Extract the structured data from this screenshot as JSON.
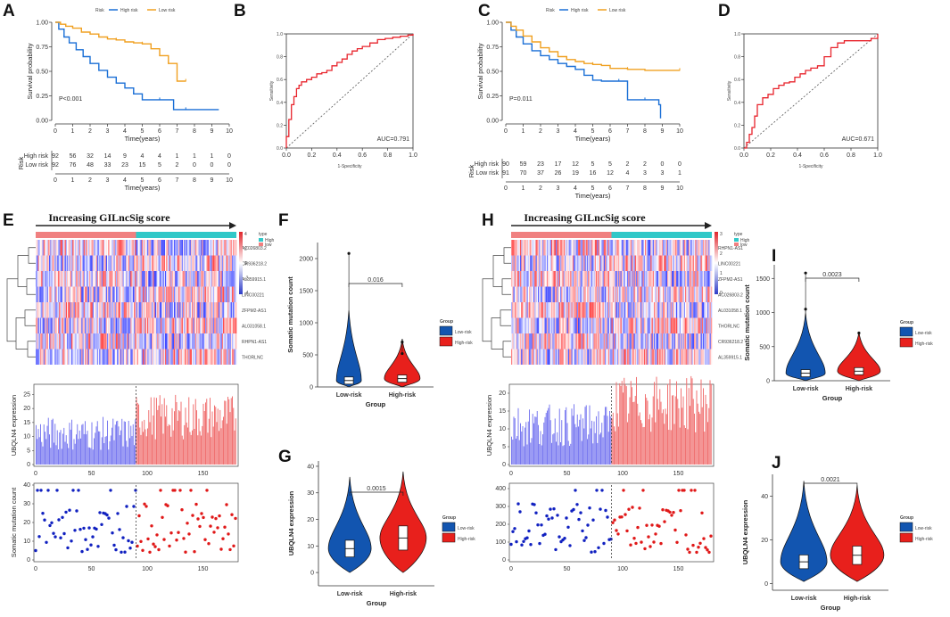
{
  "panel_letters": [
    "A",
    "B",
    "C",
    "D",
    "E",
    "F",
    "G",
    "H",
    "I",
    "J"
  ],
  "colors": {
    "high_risk": "#1a6fd6",
    "low_risk": "#f0a020",
    "roc": "#e8242c",
    "violin_low": "#1255b0",
    "violin_high": "#e8201c",
    "heat_low": "#2d3cc8",
    "heat_high": "#e0262c",
    "bar_low": "#7a7af0",
    "bar_high": "#f07272",
    "dot_low": "#1020c0",
    "dot_high": "#e01818"
  },
  "chart_data": [
    {
      "panel": "A",
      "type": "line",
      "title": "",
      "legend_title": "Risk",
      "legend": [
        "High risk",
        "Low risk"
      ],
      "ylabel": "Survival probability",
      "xlabel": "Time(years)",
      "xlim": [
        0,
        10
      ],
      "ylim": [
        0,
        1
      ],
      "xticks": [
        "0",
        "1",
        "2",
        "3",
        "4",
        "5",
        "6",
        "7",
        "8",
        "9",
        "10"
      ],
      "yticks": [
        "0.00",
        "0.25",
        "0.50",
        "0.75",
        "1.00"
      ],
      "annotation": "P<0.001",
      "series": [
        {
          "name": "High risk",
          "x": [
            0,
            0.2,
            0.5,
            0.8,
            1.2,
            1.6,
            2.0,
            2.5,
            3.0,
            3.5,
            4.0,
            4.5,
            5.0,
            5.5,
            6.0,
            6.6,
            6.8,
            7.5,
            8.5,
            9.4
          ],
          "y": [
            1,
            0.93,
            0.85,
            0.79,
            0.72,
            0.65,
            0.58,
            0.51,
            0.44,
            0.38,
            0.33,
            0.27,
            0.21,
            0.21,
            0.21,
            0.21,
            0.11,
            0.11,
            0.11,
            0.11
          ]
        },
        {
          "name": "Low risk",
          "x": [
            0,
            0.3,
            0.6,
            1.0,
            1.5,
            2.0,
            2.5,
            3.0,
            3.5,
            4.0,
            4.5,
            5.0,
            5.5,
            6.0,
            6.5,
            6.9,
            7.0,
            7.5
          ],
          "y": [
            1,
            0.98,
            0.96,
            0.94,
            0.9,
            0.88,
            0.85,
            0.83,
            0.82,
            0.8,
            0.79,
            0.78,
            0.73,
            0.66,
            0.58,
            0.58,
            0.4,
            0.4
          ]
        }
      ],
      "risk_table": {
        "label": "Risk",
        "xlabel": "Time(years)",
        "rows": [
          {
            "name": "High risk",
            "values": [
              "92",
              "56",
              "32",
              "14",
              "9",
              "4",
              "4",
              "1",
              "1",
              "1",
              "0"
            ]
          },
          {
            "name": "Low risk",
            "values": [
              "92",
              "76",
              "48",
              "33",
              "23",
              "15",
              "5",
              "2",
              "0",
              "0",
              "0"
            ]
          }
        ]
      }
    },
    {
      "panel": "B",
      "type": "line",
      "xlabel": "1-Specificity",
      "ylabel": "Sensitivity",
      "xlim": [
        0,
        1
      ],
      "ylim": [
        0,
        1
      ],
      "xticks": [
        "0.0",
        "0.2",
        "0.4",
        "0.6",
        "0.8",
        "1.0"
      ],
      "yticks": [
        "0.0",
        "0.2",
        "0.4",
        "0.6",
        "0.8",
        "1.0"
      ],
      "annotation": "AUC=0.791",
      "x": [
        0,
        0,
        0.02,
        0.04,
        0.06,
        0.08,
        0.1,
        0.12,
        0.16,
        0.2,
        0.24,
        0.28,
        0.32,
        0.36,
        0.4,
        0.44,
        0.48,
        0.52,
        0.56,
        0.6,
        0.66,
        0.72,
        0.78,
        0.84,
        0.9,
        0.96,
        1.0
      ],
      "y": [
        0,
        0.1,
        0.25,
        0.38,
        0.45,
        0.52,
        0.55,
        0.58,
        0.6,
        0.62,
        0.65,
        0.66,
        0.68,
        0.72,
        0.75,
        0.78,
        0.82,
        0.85,
        0.87,
        0.89,
        0.92,
        0.95,
        0.96,
        0.97,
        0.98,
        0.99,
        1.0
      ]
    },
    {
      "panel": "C",
      "type": "line",
      "legend_title": "Risk",
      "legend": [
        "High risk",
        "Low risk"
      ],
      "ylabel": "Survival probability",
      "xlabel": "Time(years)",
      "xlim": [
        0,
        10
      ],
      "ylim": [
        0,
        1
      ],
      "xticks": [
        "0",
        "1",
        "2",
        "3",
        "4",
        "5",
        "6",
        "7",
        "8",
        "9",
        "10"
      ],
      "yticks": [
        "0.00",
        "0.25",
        "0.50",
        "0.75",
        "1.00"
      ],
      "annotation": "P=0.011",
      "series": [
        {
          "name": "High risk",
          "x": [
            0,
            0.3,
            0.6,
            1.0,
            1.5,
            2.0,
            2.5,
            3.0,
            3.5,
            4.0,
            4.5,
            5.0,
            5.5,
            6.0,
            6.5,
            6.9,
            7.0,
            8.0,
            8.8,
            8.9
          ],
          "y": [
            1,
            0.92,
            0.85,
            0.78,
            0.71,
            0.66,
            0.62,
            0.58,
            0.55,
            0.52,
            0.46,
            0.41,
            0.4,
            0.4,
            0.4,
            0.4,
            0.21,
            0.21,
            0.16,
            0.02
          ]
        },
        {
          "name": "Low risk",
          "x": [
            0,
            0.3,
            0.6,
            1.0,
            1.5,
            2.0,
            2.5,
            3.0,
            3.5,
            4.0,
            4.5,
            5.0,
            5.5,
            6.0,
            7.0,
            8.0,
            9.0,
            10.0
          ],
          "y": [
            1,
            0.96,
            0.92,
            0.86,
            0.8,
            0.74,
            0.7,
            0.65,
            0.62,
            0.6,
            0.58,
            0.57,
            0.56,
            0.53,
            0.52,
            0.51,
            0.51,
            0.51
          ]
        }
      ],
      "risk_table": {
        "label": "Risk",
        "xlabel": "Time(years)",
        "rows": [
          {
            "name": "High risk",
            "values": [
              "90",
              "59",
              "23",
              "17",
              "12",
              "5",
              "5",
              "2",
              "2",
              "0",
              "0"
            ]
          },
          {
            "name": "Low risk",
            "values": [
              "91",
              "70",
              "37",
              "26",
              "19",
              "16",
              "12",
              "4",
              "3",
              "3",
              "1"
            ]
          }
        ]
      }
    },
    {
      "panel": "D",
      "type": "line",
      "xlabel": "1-Specificity",
      "ylabel": "Sensitivity",
      "xlim": [
        0,
        1
      ],
      "ylim": [
        0,
        1
      ],
      "xticks": [
        "0.0",
        "0.2",
        "0.4",
        "0.6",
        "0.8",
        "1.0"
      ],
      "yticks": [
        "0.0",
        "0.2",
        "0.4",
        "0.6",
        "0.8",
        "1.0"
      ],
      "annotation": "AUC=0.671",
      "x": [
        0,
        0.02,
        0.04,
        0.06,
        0.08,
        0.1,
        0.14,
        0.18,
        0.22,
        0.26,
        0.3,
        0.34,
        0.38,
        0.42,
        0.46,
        0.5,
        0.55,
        0.6,
        0.65,
        0.7,
        0.75,
        0.8,
        0.85,
        0.9,
        0.95,
        1.0
      ],
      "y": [
        0,
        0.05,
        0.12,
        0.18,
        0.28,
        0.38,
        0.44,
        0.47,
        0.52,
        0.55,
        0.57,
        0.58,
        0.62,
        0.65,
        0.68,
        0.7,
        0.72,
        0.8,
        0.88,
        0.92,
        0.94,
        0.94,
        0.94,
        0.94,
        0.96,
        1.0
      ]
    },
    {
      "panel": "E",
      "type": "heatmap",
      "title": "Increasing GILncSig  score",
      "rows": [
        "AC026803.2",
        "CR936218.2",
        "AL359915.1",
        "LINC00221",
        "ZFPM2-AS1",
        "AL031058.1",
        "RHPN1-AS1",
        "THORLNC"
      ],
      "legend_title": "type",
      "legend": [
        "High",
        "low"
      ],
      "scale_ticks": [
        "4",
        "2",
        "0",
        "-2",
        "-4"
      ],
      "bar": {
        "ylabel": "UBQLN4 expression",
        "yticks": [
          "0",
          "5",
          "10",
          "15",
          "20",
          "25"
        ],
        "xticks": [
          "0",
          "50",
          "100",
          "150"
        ],
        "ylim": [
          0,
          28
        ]
      },
      "scatter": {
        "ylabel": "Somatic mutation count",
        "yticks": [
          "0",
          "10",
          "20",
          "30",
          "40"
        ],
        "xticks": [
          "0",
          "50",
          "100",
          "150"
        ],
        "ylim": [
          0,
          40
        ]
      }
    },
    {
      "panel": "F",
      "type": "violin",
      "categories": [
        "Low-risk",
        "High-risk"
      ],
      "xlabel": "Group",
      "ylabel": "Somatic mutation count",
      "yticks": [
        "0",
        "500",
        "1000",
        "1500",
        "2000"
      ],
      "ylim": [
        0,
        2250
      ],
      "pvalue": "0.016",
      "legend_title": "Group",
      "legend": [
        "Low-risk",
        "High-risk"
      ],
      "medians": [
        100,
        130
      ],
      "outliers": [
        [
          2080
        ],
        [
          700,
          520
        ]
      ]
    },
    {
      "panel": "G",
      "type": "violin",
      "categories": [
        "Low-risk",
        "High-risk"
      ],
      "xlabel": "Group",
      "ylabel": "UBQLN4 expression",
      "yticks": [
        "0",
        "10",
        "20",
        "30",
        "40"
      ],
      "ylim": [
        -5,
        42
      ],
      "pvalue": "0.0015",
      "legend_title": "Group",
      "legend": [
        "Low-risk",
        "High-risk"
      ],
      "medians": [
        9,
        13
      ]
    },
    {
      "panel": "H",
      "type": "heatmap",
      "title": "Increasing GILncSig  score",
      "rows": [
        "RHPN1-AS1",
        "LINC00221",
        "ZFPM2-AS1",
        "AC026803.2",
        "AL031058.1",
        "THORLNC",
        "CR936218.2",
        "AL359915.1"
      ],
      "legend_title": "type",
      "legend": [
        "High",
        "low"
      ],
      "scale_ticks": [
        "3",
        "2",
        "1",
        "0"
      ],
      "bar": {
        "ylabel": "UBQLN4 expression",
        "yticks": [
          "0",
          "5",
          "10",
          "15",
          "20"
        ],
        "xticks": [
          "0",
          "50",
          "100",
          "150"
        ],
        "ylim": [
          0,
          22
        ]
      },
      "scatter": {
        "ylabel": "",
        "yticks": [
          "0",
          "100",
          "200",
          "300",
          "400"
        ],
        "xticks": [
          "0",
          "50",
          "100",
          "150"
        ],
        "ylim": [
          0,
          420
        ]
      }
    },
    {
      "panel": "I",
      "type": "violin",
      "categories": [
        "Low-risk",
        "High-risk"
      ],
      "xlabel": "Group",
      "ylabel": "Somatic mutation count",
      "yticks": [
        "0",
        "500",
        "1000",
        "1500"
      ],
      "ylim": [
        0,
        1700
      ],
      "pvalue": "0.0023",
      "legend_title": "Group",
      "legend": [
        "Low-risk",
        "High-risk"
      ],
      "medians": [
        110,
        140
      ],
      "outliers": [
        [
          1580,
          1050
        ],
        [
          700
        ]
      ]
    },
    {
      "panel": "J",
      "type": "violin",
      "categories": [
        "Low-risk",
        "High-risk"
      ],
      "xlabel": "Group",
      "ylabel": "UBQLN4 expression",
      "yticks": [
        "0",
        "20",
        "40"
      ],
      "ylim": [
        -3,
        50
      ],
      "pvalue": "0.0021",
      "legend_title": "Group",
      "legend": [
        "Low-risk",
        "High-risk"
      ],
      "medians": [
        10,
        13
      ]
    }
  ]
}
